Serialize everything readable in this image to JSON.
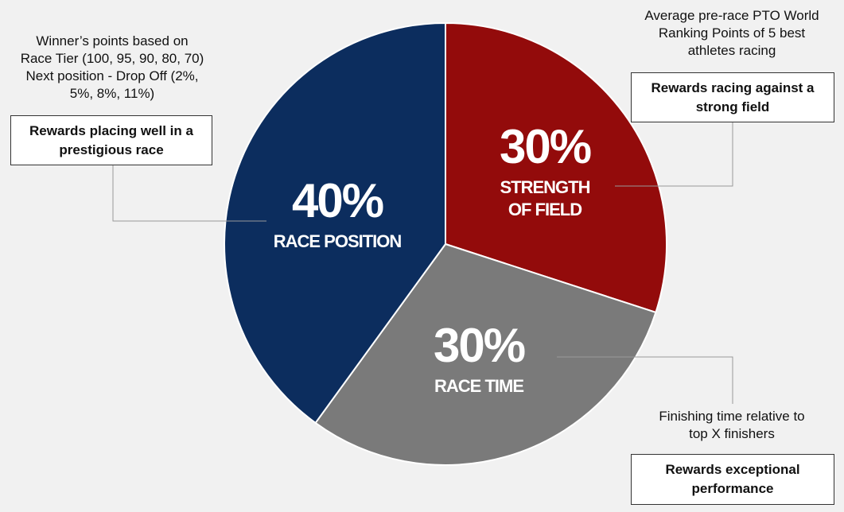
{
  "chart_data": {
    "type": "pie",
    "slices": [
      {
        "id": "strength",
        "percent_label": "30%",
        "label_lines": [
          "STRENGTH",
          "OF FIELD"
        ],
        "value": 30,
        "color": "#930b0b"
      },
      {
        "id": "time",
        "percent_label": "30%",
        "label_lines": [
          "RACE TIME"
        ],
        "value": 30,
        "color": "#7a7a7a"
      },
      {
        "id": "position",
        "percent_label": "40%",
        "label_lines": [
          "RACE POSITION"
        ],
        "value": 40,
        "color": "#0c2d5e"
      }
    ]
  },
  "annotations": {
    "position": {
      "note_lines": [
        "Winner’s points based on",
        "Race Tier (100, 95, 90, 80, 70)",
        "Next position - Drop Off (2%,",
        "5%, 8%, 11%)"
      ],
      "callout_lines": [
        "Rewards placing well in a",
        "prestigious race"
      ]
    },
    "strength": {
      "note_lines": [
        "Average pre-race PTO World",
        "Ranking Points of 5 best",
        "athletes racing"
      ],
      "callout_lines": [
        "Rewards racing against a",
        "strong field"
      ]
    },
    "time": {
      "note_lines": [
        "Finishing time relative to",
        "top X finishers"
      ],
      "callout_lines": [
        "Rewards exceptional",
        "performance"
      ]
    }
  }
}
